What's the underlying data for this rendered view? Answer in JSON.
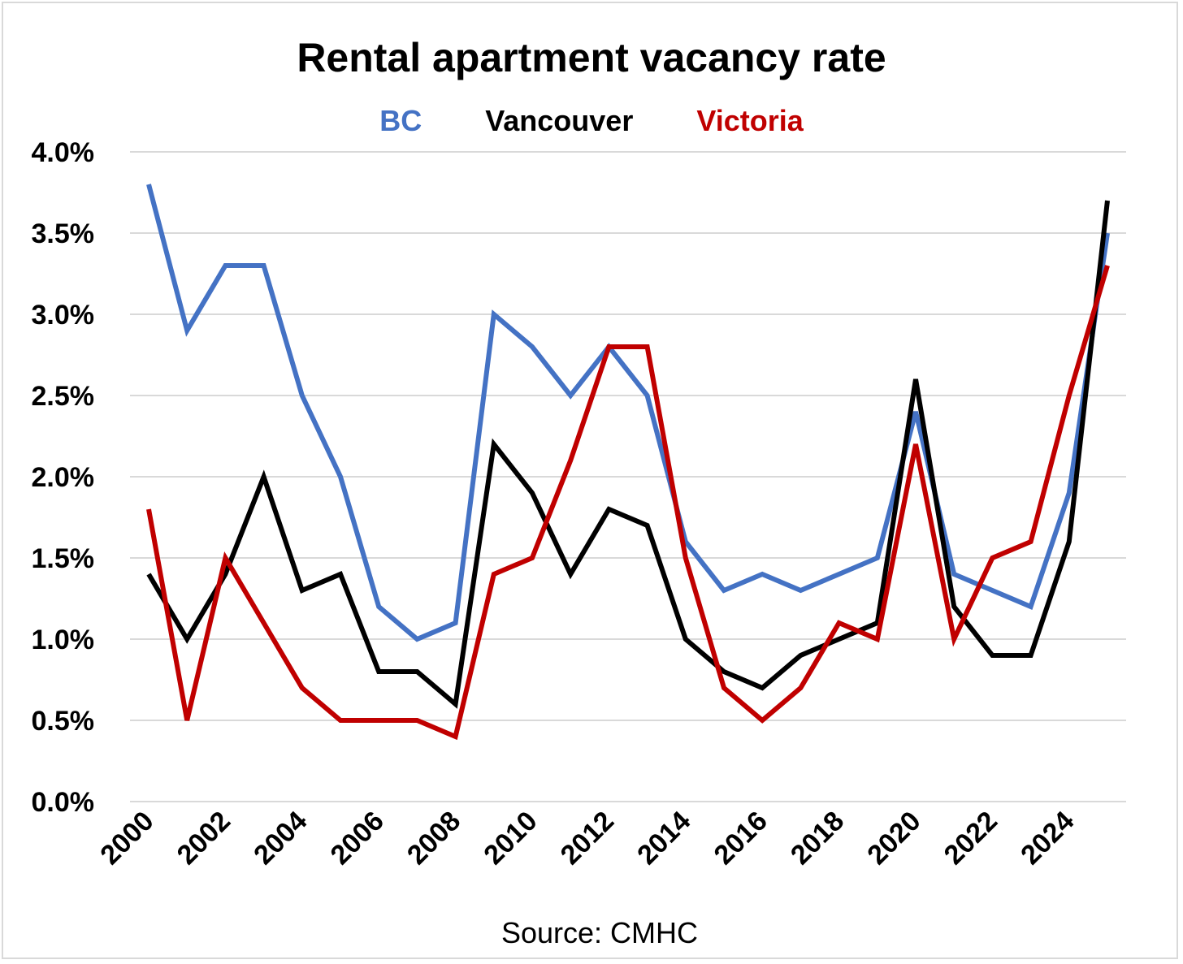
{
  "chart_data": {
    "type": "line",
    "title": "Rental apartment vacancy rate",
    "source": "Source:  CMHC",
    "x": [
      2000,
      2001,
      2002,
      2003,
      2004,
      2005,
      2006,
      2007,
      2008,
      2009,
      2010,
      2011,
      2012,
      2013,
      2014,
      2015,
      2016,
      2017,
      2018,
      2019,
      2020,
      2021,
      2022,
      2023,
      2024,
      2025
    ],
    "x_tick_labels": [
      "2000",
      "2002",
      "2004",
      "2006",
      "2008",
      "2010",
      "2012",
      "2014",
      "2016",
      "2018",
      "2020",
      "2022",
      "2024"
    ],
    "y_tick_labels": [
      "0.0%",
      "0.5%",
      "1.0%",
      "1.5%",
      "2.0%",
      "2.5%",
      "3.0%",
      "3.5%",
      "4.0%"
    ],
    "ylim": [
      0,
      4
    ],
    "grid": true,
    "legend_position": "top",
    "series": [
      {
        "name": "BC",
        "color": "#4472C4",
        "values": [
          3.8,
          2.9,
          3.3,
          3.3,
          2.5,
          2.0,
          1.2,
          1.0,
          1.1,
          3.0,
          2.8,
          2.5,
          2.8,
          2.5,
          1.6,
          1.3,
          1.4,
          1.3,
          1.4,
          1.5,
          2.4,
          1.4,
          1.3,
          1.2,
          1.9,
          3.5
        ]
      },
      {
        "name": "Vancouver",
        "color": "#000000",
        "values": [
          1.4,
          1.0,
          1.4,
          2.0,
          1.3,
          1.4,
          0.8,
          0.8,
          0.6,
          2.2,
          1.9,
          1.4,
          1.8,
          1.7,
          1.0,
          0.8,
          0.7,
          0.9,
          1.0,
          1.1,
          2.6,
          1.2,
          0.9,
          0.9,
          1.6,
          3.7
        ]
      },
      {
        "name": "Victoria",
        "color": "#C00000",
        "values": [
          1.8,
          0.5,
          1.5,
          1.1,
          0.7,
          0.5,
          0.5,
          0.5,
          0.4,
          1.4,
          1.5,
          2.1,
          2.8,
          2.8,
          1.5,
          0.7,
          0.5,
          0.7,
          1.1,
          1.0,
          2.2,
          1.0,
          1.5,
          1.6,
          2.5,
          3.3
        ]
      }
    ]
  }
}
